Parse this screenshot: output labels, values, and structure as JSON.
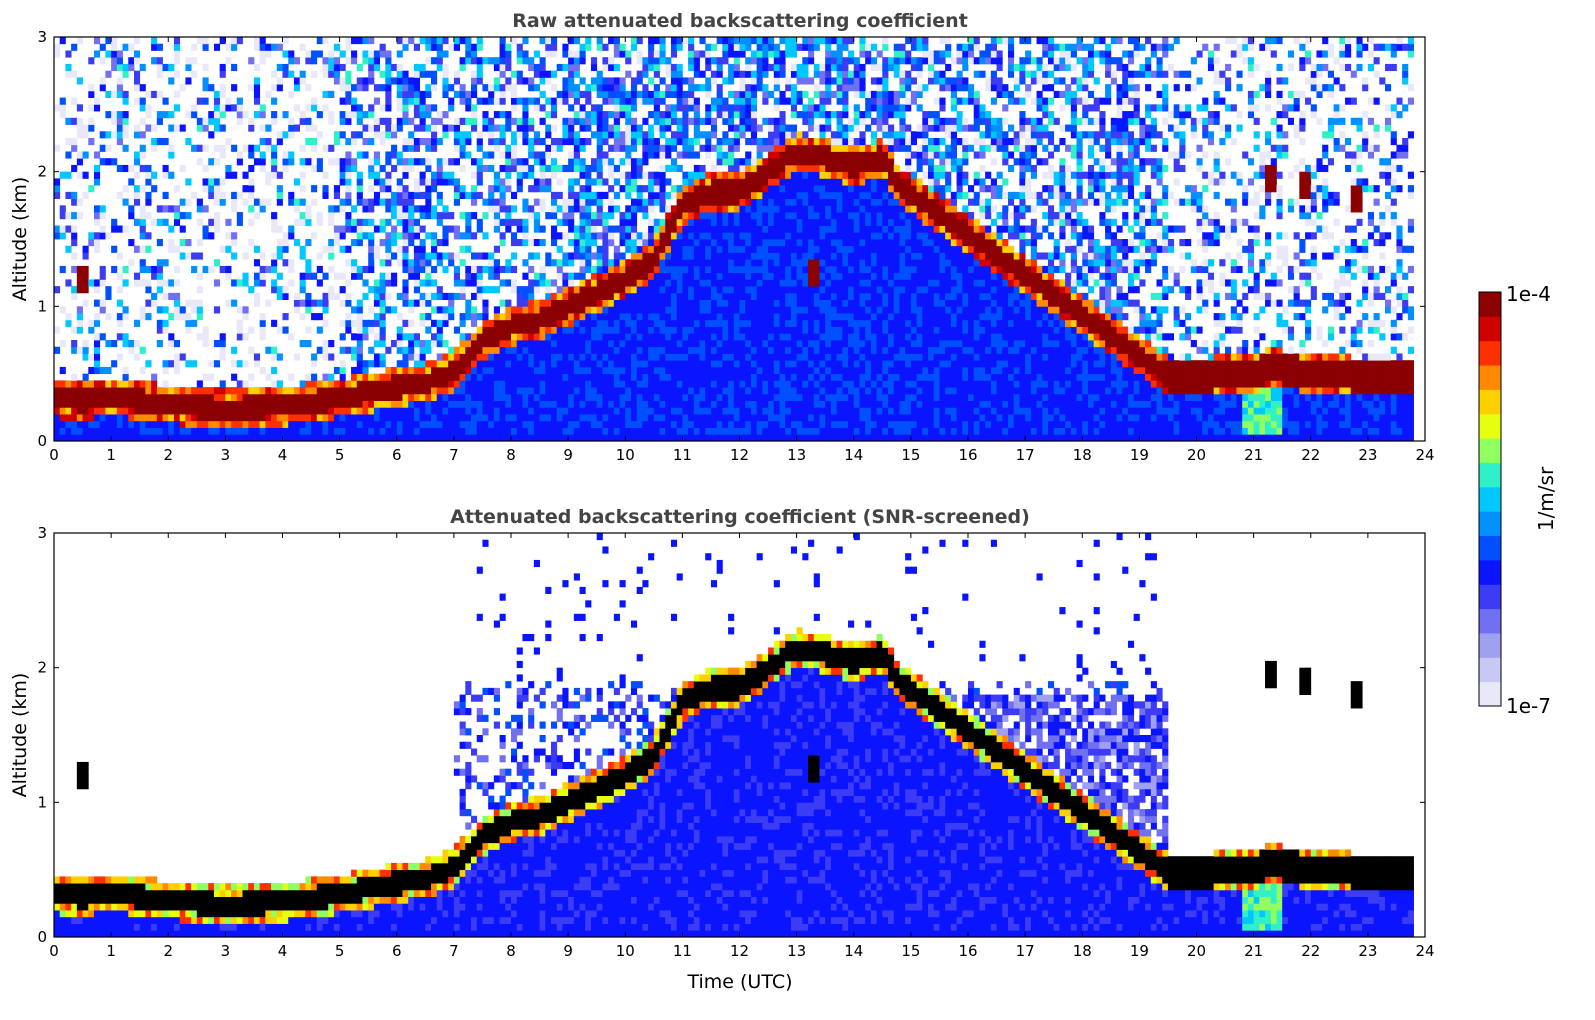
{
  "colors": {
    "background": "#ffffff",
    "colormap": [
      "#e8e8f8",
      "#c8c8f4",
      "#a0a0f0",
      "#7070f0",
      "#3c3cf4",
      "#0a14ff",
      "#0050ff",
      "#0090ff",
      "#00c8ff",
      "#30f0c8",
      "#90ff60",
      "#e6ff10",
      "#ffd000",
      "#ff8a00",
      "#ff3000",
      "#d00000",
      "#8b0000"
    ],
    "saturated": "#000000"
  },
  "chart_data": [
    {
      "type": "heatmap",
      "title": "Raw attenuated backscattering coefficient",
      "xlabel": "",
      "ylabel": "Altitude (km)",
      "xlim": [
        0,
        24
      ],
      "ylim": [
        0,
        3
      ],
      "xticks": [
        "0",
        "1",
        "2",
        "3",
        "4",
        "5",
        "6",
        "7",
        "8",
        "9",
        "10",
        "11",
        "12",
        "13",
        "14",
        "15",
        "16",
        "17",
        "18",
        "19",
        "20",
        "21",
        "22",
        "23",
        "24"
      ],
      "yticks": [
        "0",
        "1",
        "2",
        "3"
      ],
      "boundary_layer_top_km": [
        [
          0,
          0.32
        ],
        [
          0.5,
          0.3
        ],
        [
          1,
          0.33
        ],
        [
          2,
          0.27
        ],
        [
          3,
          0.24
        ],
        [
          4,
          0.26
        ],
        [
          5,
          0.32
        ],
        [
          6,
          0.4
        ],
        [
          6.5,
          0.43
        ],
        [
          7,
          0.52
        ],
        [
          7.5,
          0.75
        ],
        [
          8,
          0.85
        ],
        [
          8.5,
          0.9
        ],
        [
          9,
          1.0
        ],
        [
          9.5,
          1.1
        ],
        [
          10,
          1.2
        ],
        [
          10.5,
          1.35
        ],
        [
          11,
          1.75
        ],
        [
          11.5,
          1.85
        ],
        [
          12,
          1.85
        ],
        [
          12.5,
          2.0
        ],
        [
          13,
          2.15
        ],
        [
          13.5,
          2.1
        ],
        [
          14,
          2.05
        ],
        [
          14.5,
          2.1
        ],
        [
          14.8,
          1.9
        ],
        [
          19.5,
          0.48
        ],
        [
          20,
          0.48
        ],
        [
          21,
          0.5
        ],
        [
          21.3,
          0.55
        ],
        [
          22,
          0.5
        ],
        [
          23,
          0.48
        ],
        [
          23.75,
          0.48
        ]
      ],
      "cloud_patches_km": [
        [
          0.5,
          1.2
        ],
        [
          21.3,
          1.95
        ],
        [
          21.9,
          1.88
        ],
        [
          22.8,
          1.8
        ],
        [
          13.3,
          1.25
        ]
      ],
      "data_end_hour": 23.75,
      "night_change_hour": 19.5
    },
    {
      "type": "heatmap",
      "title": "Attenuated backscattering coefficient (SNR-screened)",
      "xlabel": "Time (UTC)",
      "ylabel": "Altitude (km)",
      "xlim": [
        0,
        24
      ],
      "ylim": [
        0,
        3
      ],
      "xticks": [
        "0",
        "1",
        "2",
        "3",
        "4",
        "5",
        "6",
        "7",
        "8",
        "9",
        "10",
        "11",
        "12",
        "13",
        "14",
        "15",
        "16",
        "17",
        "18",
        "19",
        "20",
        "21",
        "22",
        "23",
        "24"
      ],
      "yticks": [
        "0",
        "1",
        "2",
        "3"
      ]
    }
  ],
  "colorbar": {
    "label": "1/m/sr",
    "max_label": "1e-4",
    "min_label": "1e-7"
  }
}
